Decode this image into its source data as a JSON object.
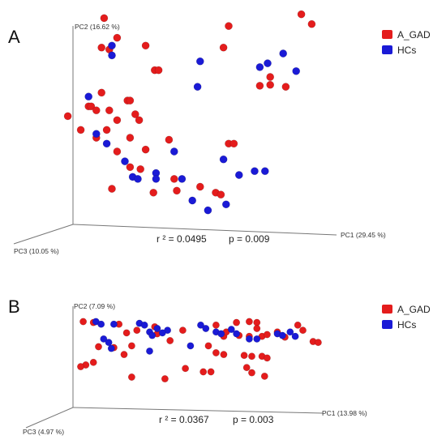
{
  "chart_data": [
    {
      "type": "scatter",
      "panel": "A",
      "axes": {
        "x": "PC1 (29.45 %)",
        "y": "PC2 (16.62 %)",
        "z": "PC3 (10.05 %)"
      },
      "stats": {
        "r2": "r ² = 0.0495",
        "p": "p = 0.009"
      },
      "legend": [
        {
          "name": "A_GAD",
          "color": "#e41c1c"
        },
        {
          "name": "HCs",
          "color": "#1a1ad6"
        }
      ],
      "series": [
        {
          "name": "A_GAD",
          "color": "#e41c1c",
          "points": [
            [
              0.12,
              0.99
            ],
            [
              0.17,
              0.89
            ],
            [
              0.11,
              0.84
            ],
            [
              0.14,
              0.83
            ],
            [
              0.28,
              0.85
            ],
            [
              0.315,
              0.725
            ],
            [
              0.33,
              0.725
            ],
            [
              0.88,
              1.01
            ],
            [
              0.92,
              0.96
            ],
            [
              0.6,
              0.95
            ],
            [
              0.58,
              0.84
            ],
            [
              0.76,
              0.69
            ],
            [
              0.76,
              0.65
            ],
            [
              0.72,
              0.645
            ],
            [
              0.82,
              0.64
            ],
            [
              0.11,
              0.61
            ],
            [
              0.06,
              0.54
            ],
            [
              0.07,
              0.54
            ],
            [
              0.09,
              0.52
            ],
            [
              0.14,
              0.52
            ],
            [
              0.21,
              0.57
            ],
            [
              0.22,
              0.57
            ],
            [
              0.24,
              0.5
            ],
            [
              0.255,
              0.47
            ],
            [
              -0.02,
              0.49
            ],
            [
              0.13,
              0.42
            ],
            [
              0.17,
              0.47
            ],
            [
              0.22,
              0.38
            ],
            [
              0.28,
              0.32
            ],
            [
              0.37,
              0.37
            ],
            [
              0.6,
              0.35
            ],
            [
              0.62,
              0.35
            ],
            [
              0.03,
              0.42
            ],
            [
              0.09,
              0.38
            ],
            [
              0.17,
              0.31
            ],
            [
              0.22,
              0.23
            ],
            [
              0.26,
              0.22
            ],
            [
              0.39,
              0.17
            ],
            [
              0.4,
              0.11
            ],
            [
              0.49,
              0.13
            ],
            [
              0.55,
              0.1
            ],
            [
              0.57,
              0.09
            ],
            [
              0.31,
              0.1
            ],
            [
              0.15,
              0.12
            ]
          ]
        },
        {
          "name": "HCs",
          "color": "#1a1ad6",
          "points": [
            [
              0.15,
              0.85
            ],
            [
              0.15,
              0.8
            ],
            [
              0.49,
              0.77
            ],
            [
              0.48,
              0.64
            ],
            [
              0.72,
              0.74
            ],
            [
              0.75,
              0.76
            ],
            [
              0.81,
              0.81
            ],
            [
              0.86,
              0.72
            ],
            [
              0.06,
              0.59
            ],
            [
              0.09,
              0.4
            ],
            [
              0.13,
              0.35
            ],
            [
              0.2,
              0.26
            ],
            [
              0.23,
              0.18
            ],
            [
              0.25,
              0.17
            ],
            [
              0.32,
              0.2
            ],
            [
              0.39,
              0.31
            ],
            [
              0.42,
              0.17
            ],
            [
              0.58,
              0.27
            ],
            [
              0.64,
              0.19
            ],
            [
              0.7,
              0.21
            ],
            [
              0.74,
              0.21
            ],
            [
              0.32,
              0.17
            ],
            [
              0.46,
              0.06
            ],
            [
              0.59,
              0.04
            ],
            [
              0.52,
              0.01
            ]
          ]
        }
      ]
    },
    {
      "type": "scatter",
      "panel": "B",
      "axes": {
        "x": "PC1 (13.98 %)",
        "y": "PC2 (7.09 %)",
        "z": "PC3 (4.97 %)"
      },
      "stats": {
        "r2": "r ² = 0.0367",
        "p": "p = 0.003"
      },
      "legend": [
        {
          "name": "A_GAD",
          "color": "#e41c1c"
        },
        {
          "name": "HCs",
          "color": "#1a1ad6"
        }
      ],
      "series": [
        {
          "name": "A_GAD",
          "color": "#e41c1c",
          "points": [
            [
              0.08,
              0.85
            ],
            [
              0.18,
              0.83
            ],
            [
              0.21,
              0.73
            ],
            [
              0.25,
              0.76
            ],
            [
              0.33,
              0.72
            ],
            [
              0.32,
              0.8
            ],
            [
              0.04,
              0.86
            ],
            [
              0.1,
              0.57
            ],
            [
              0.16,
              0.56
            ],
            [
              0.23,
              0.58
            ],
            [
              0.05,
              0.36
            ],
            [
              0.08,
              0.39
            ],
            [
              0.03,
              0.34
            ],
            [
              0.2,
              0.48
            ],
            [
              0.38,
              0.64
            ],
            [
              0.43,
              0.76
            ],
            [
              0.56,
              0.82
            ],
            [
              0.64,
              0.85
            ],
            [
              0.69,
              0.86
            ],
            [
              0.72,
              0.85
            ],
            [
              0.72,
              0.78
            ],
            [
              0.8,
              0.74
            ],
            [
              0.83,
              0.68
            ],
            [
              0.88,
              0.82
            ],
            [
              0.9,
              0.76
            ],
            [
              0.59,
              0.69
            ],
            [
              0.6,
              0.74
            ],
            [
              0.65,
              0.7
            ],
            [
              0.69,
              0.69
            ],
            [
              0.74,
              0.69
            ],
            [
              0.76,
              0.71
            ],
            [
              0.94,
              0.63
            ],
            [
              0.96,
              0.62
            ],
            [
              0.53,
              0.58
            ],
            [
              0.56,
              0.5
            ],
            [
              0.59,
              0.48
            ],
            [
              0.67,
              0.47
            ],
            [
              0.7,
              0.46
            ],
            [
              0.74,
              0.46
            ],
            [
              0.76,
              0.44
            ],
            [
              0.51,
              0.28
            ],
            [
              0.54,
              0.28
            ],
            [
              0.44,
              0.32
            ],
            [
              0.36,
              0.2
            ],
            [
              0.68,
              0.33
            ],
            [
              0.7,
              0.27
            ],
            [
              0.75,
              0.23
            ],
            [
              0.23,
              0.22
            ]
          ]
        },
        {
          "name": "HCs",
          "color": "#1a1ad6",
          "points": [
            [
              0.09,
              0.86
            ],
            [
              0.11,
              0.83
            ],
            [
              0.16,
              0.83
            ],
            [
              0.26,
              0.84
            ],
            [
              0.28,
              0.82
            ],
            [
              0.33,
              0.78
            ],
            [
              0.37,
              0.76
            ],
            [
              0.12,
              0.66
            ],
            [
              0.14,
              0.62
            ],
            [
              0.15,
              0.55
            ],
            [
              0.3,
              0.74
            ],
            [
              0.31,
              0.7
            ],
            [
              0.35,
              0.73
            ],
            [
              0.5,
              0.82
            ],
            [
              0.52,
              0.78
            ],
            [
              0.56,
              0.74
            ],
            [
              0.58,
              0.72
            ],
            [
              0.62,
              0.77
            ],
            [
              0.64,
              0.72
            ],
            [
              0.69,
              0.66
            ],
            [
              0.72,
              0.66
            ],
            [
              0.8,
              0.72
            ],
            [
              0.82,
              0.7
            ],
            [
              0.85,
              0.74
            ],
            [
              0.46,
              0.58
            ],
            [
              0.87,
              0.69
            ],
            [
              0.3,
              0.52
            ]
          ]
        }
      ]
    }
  ]
}
